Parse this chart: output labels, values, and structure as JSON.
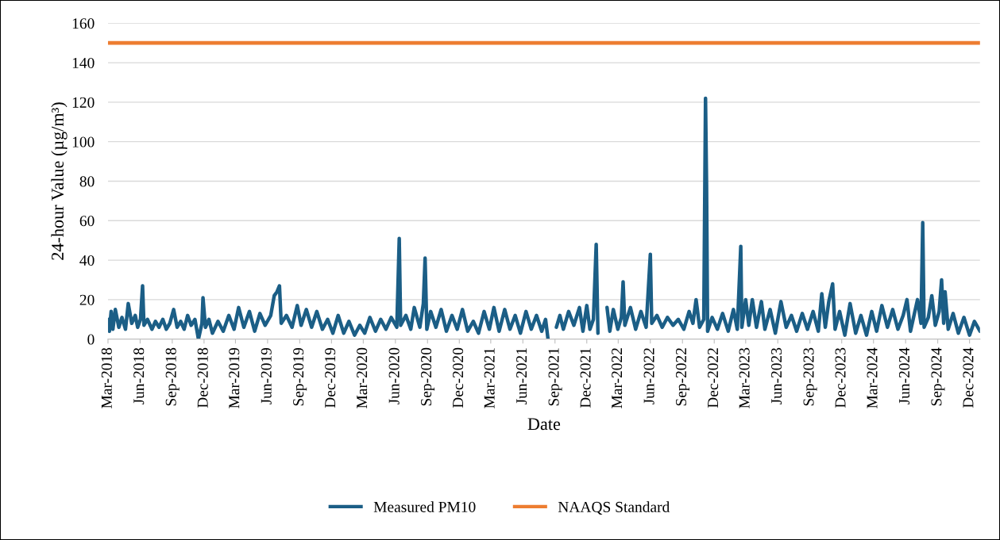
{
  "chart_data": {
    "type": "line",
    "xlabel": "Date",
    "ylabel": "24-hour Value (µg/m³)",
    "xlim": [
      "2018-03-01",
      "2024-12-31"
    ],
    "ylim": [
      0,
      160
    ],
    "yticks": [
      0,
      20,
      40,
      60,
      80,
      100,
      120,
      140,
      160
    ],
    "xticks": [
      {
        "value": "2018-03-01",
        "label": "Mar-2018"
      },
      {
        "value": "2018-06-01",
        "label": "Jun-2018"
      },
      {
        "value": "2018-09-01",
        "label": "Sep-2018"
      },
      {
        "value": "2018-12-01",
        "label": "Dec-2018"
      },
      {
        "value": "2019-03-01",
        "label": "Mar-2019"
      },
      {
        "value": "2019-06-01",
        "label": "Jun-2019"
      },
      {
        "value": "2019-09-01",
        "label": "Sep-2019"
      },
      {
        "value": "2019-12-01",
        "label": "Dec-2019"
      },
      {
        "value": "2020-03-01",
        "label": "Mar-2020"
      },
      {
        "value": "2020-06-01",
        "label": "Jun-2020"
      },
      {
        "value": "2020-09-01",
        "label": "Sep-2020"
      },
      {
        "value": "2020-12-01",
        "label": "Dec-2020"
      },
      {
        "value": "2021-03-01",
        "label": "Mar-2021"
      },
      {
        "value": "2021-06-01",
        "label": "Jun-2021"
      },
      {
        "value": "2021-09-01",
        "label": "Sep-2021"
      },
      {
        "value": "2021-12-01",
        "label": "Dec-2021"
      },
      {
        "value": "2022-03-01",
        "label": "Mar-2022"
      },
      {
        "value": "2022-06-01",
        "label": "Jun-2022"
      },
      {
        "value": "2022-09-01",
        "label": "Sep-2022"
      },
      {
        "value": "2022-12-01",
        "label": "Dec-2022"
      },
      {
        "value": "2023-03-01",
        "label": "Mar-2023"
      },
      {
        "value": "2023-06-01",
        "label": "Jun-2023"
      },
      {
        "value": "2023-09-01",
        "label": "Sep-2023"
      },
      {
        "value": "2023-12-01",
        "label": "Dec-2023"
      },
      {
        "value": "2024-03-01",
        "label": "Mar-2024"
      },
      {
        "value": "2024-06-01",
        "label": "Jun-2024"
      },
      {
        "value": "2024-09-01",
        "label": "Sep-2024"
      },
      {
        "value": "2024-12-01",
        "label": "Dec-2024"
      }
    ],
    "grid": "y",
    "legend": "bottom",
    "series": [
      {
        "name": "Measured PM10",
        "color": "#1b5e86",
        "x": [
          "2018-03-01",
          "2018-03-05",
          "2018-03-10",
          "2018-03-15",
          "2018-03-22",
          "2018-04-01",
          "2018-04-10",
          "2018-04-20",
          "2018-04-28",
          "2018-05-08",
          "2018-05-18",
          "2018-05-25",
          "2018-06-02",
          "2018-06-08",
          "2018-06-12",
          "2018-06-22",
          "2018-07-05",
          "2018-07-15",
          "2018-07-25",
          "2018-08-05",
          "2018-08-15",
          "2018-08-25",
          "2018-09-05",
          "2018-09-15",
          "2018-09-25",
          "2018-10-05",
          "2018-10-15",
          "2018-10-25",
          "2018-11-05",
          "2018-11-15",
          "2018-11-25",
          "2018-11-28",
          "2018-12-05",
          "2018-12-15",
          "2018-12-25",
          "2019-01-10",
          "2019-01-25",
          "2019-02-10",
          "2019-02-25",
          "2019-03-10",
          "2019-03-25",
          "2019-04-10",
          "2019-04-25",
          "2019-05-10",
          "2019-05-25",
          "2019-06-10",
          "2019-06-20",
          "2019-06-28",
          "2019-07-05",
          "2019-07-10",
          "2019-07-25",
          "2019-08-10",
          "2019-08-25",
          "2019-09-05",
          "2019-09-20",
          "2019-10-05",
          "2019-10-20",
          "2019-11-05",
          "2019-11-20",
          "2019-12-05",
          "2019-12-20",
          "2020-01-05",
          "2020-01-20",
          "2020-02-05",
          "2020-02-20",
          "2020-03-05",
          "2020-03-20",
          "2020-04-05",
          "2020-04-20",
          "2020-05-05",
          "2020-05-20",
          "2020-06-05",
          "2020-06-12",
          "2020-06-16",
          "2020-07-01",
          "2020-07-15",
          "2020-07-25",
          "2020-08-10",
          "2020-08-20",
          "2020-08-25",
          "2020-08-30",
          "2020-09-10",
          "2020-09-25",
          "2020-10-10",
          "2020-10-25",
          "2020-11-10",
          "2020-11-25",
          "2020-12-10",
          "2020-12-25",
          "2021-01-10",
          "2021-01-25",
          "2021-02-10",
          "2021-02-25",
          "2021-03-10",
          "2021-03-25",
          "2021-04-10",
          "2021-04-25",
          "2021-05-10",
          "2021-05-25",
          "2021-06-10",
          "2021-06-25",
          "2021-07-10",
          "2021-07-25",
          "2021-08-05",
          "2021-08-12",
          "2021-08-20",
          "2021-09-05",
          "2021-09-15",
          "2021-09-25",
          "2021-10-10",
          "2021-10-25",
          "2021-11-10",
          "2021-11-20",
          "2021-12-01",
          "2021-12-10",
          "2021-12-20",
          "2021-12-28",
          "2022-01-02",
          "2022-01-10",
          "2022-01-28",
          "2022-02-05",
          "2022-02-15",
          "2022-02-28",
          "2022-03-10",
          "2022-03-15",
          "2022-03-20",
          "2022-04-05",
          "2022-04-20",
          "2022-05-05",
          "2022-05-20",
          "2022-06-01",
          "2022-06-05",
          "2022-06-20",
          "2022-07-05",
          "2022-07-20",
          "2022-08-05",
          "2022-08-20",
          "2022-09-05",
          "2022-09-20",
          "2022-10-01",
          "2022-10-10",
          "2022-10-20",
          "2022-11-01",
          "2022-11-06",
          "2022-11-09",
          "2022-11-12",
          "2022-11-25",
          "2022-12-10",
          "2022-12-25",
          "2023-01-10",
          "2023-01-25",
          "2023-02-05",
          "2023-02-15",
          "2023-02-18",
          "2023-03-01",
          "2023-03-10",
          "2023-03-20",
          "2023-04-01",
          "2023-04-15",
          "2023-04-25",
          "2023-05-10",
          "2023-05-25",
          "2023-06-10",
          "2023-06-25",
          "2023-07-10",
          "2023-07-25",
          "2023-08-10",
          "2023-08-25",
          "2023-09-10",
          "2023-09-25",
          "2023-10-05",
          "2023-10-15",
          "2023-10-25",
          "2023-11-05",
          "2023-11-12",
          "2023-11-25",
          "2023-12-10",
          "2023-12-25",
          "2024-01-10",
          "2024-01-25",
          "2024-02-10",
          "2024-02-25",
          "2024-03-10",
          "2024-03-25",
          "2024-04-10",
          "2024-04-25",
          "2024-05-10",
          "2024-05-25",
          "2024-06-05",
          "2024-06-15",
          "2024-06-25",
          "2024-07-05",
          "2024-07-15",
          "2024-07-20",
          "2024-07-24",
          "2024-08-05",
          "2024-08-15",
          "2024-08-25",
          "2024-09-05",
          "2024-09-12",
          "2024-09-18",
          "2024-09-22",
          "2024-10-01",
          "2024-10-15",
          "2024-10-30",
          "2024-11-15",
          "2024-12-01",
          "2024-12-15",
          "2024-12-31"
        ],
        "values": [
          10,
          4,
          14,
          5,
          15,
          6,
          11,
          5,
          18,
          8,
          12,
          6,
          10,
          27,
          7,
          10,
          5,
          9,
          6,
          10,
          5,
          8,
          15,
          6,
          9,
          5,
          12,
          7,
          10,
          0,
          8,
          21,
          6,
          10,
          3,
          9,
          4,
          12,
          5,
          16,
          6,
          14,
          4,
          13,
          7,
          12,
          22,
          24,
          27,
          8,
          12,
          6,
          17,
          7,
          15,
          6,
          14,
          5,
          10,
          3,
          12,
          3,
          9,
          2,
          7,
          3,
          11,
          4,
          10,
          5,
          11,
          6,
          51,
          7,
          12,
          5,
          16,
          6,
          18,
          41,
          5,
          14,
          6,
          15,
          4,
          12,
          5,
          15,
          4,
          9,
          3,
          14,
          5,
          16,
          4,
          15,
          5,
          12,
          3,
          14,
          5,
          12,
          4,
          10,
          0,
          null,
          6,
          12,
          5,
          14,
          7,
          16,
          4,
          17,
          5,
          10,
          48,
          3,
          null,
          16,
          4,
          15,
          5,
          11,
          29,
          7,
          16,
          5,
          14,
          6,
          43,
          8,
          12,
          6,
          11,
          7,
          10,
          5,
          14,
          8,
          20,
          6,
          10,
          122,
          78,
          4,
          11,
          5,
          13,
          4,
          15,
          5,
          47,
          6,
          20,
          7,
          20,
          6,
          19,
          5,
          15,
          3,
          19,
          6,
          12,
          4,
          13,
          5,
          14,
          4,
          23,
          6,
          19,
          28,
          5,
          14,
          2,
          18,
          3,
          12,
          2,
          14,
          4,
          17,
          6,
          15,
          5,
          12,
          20,
          4,
          12,
          20,
          8,
          59,
          6,
          11,
          22,
          7,
          14,
          30,
          8,
          24,
          5,
          13,
          3,
          11,
          2,
          9,
          4
        ]
      },
      {
        "name": "NAAQS Standard",
        "color": "#ed7d31",
        "x": [
          "2018-03-01",
          "2024-12-31"
        ],
        "values": [
          150,
          150
        ]
      }
    ]
  }
}
